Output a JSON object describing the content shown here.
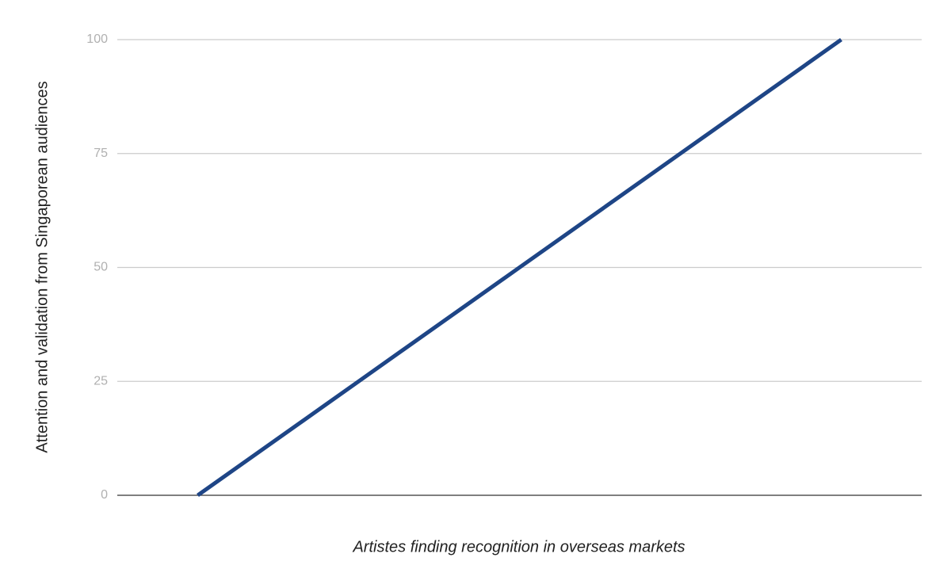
{
  "chart_data": {
    "type": "line",
    "x_label": "Artistes finding recognition in overseas markets",
    "y_label": "Attention and validation from Singaporean audiences",
    "categories": [
      null,
      null,
      null,
      null,
      null
    ],
    "series": [
      {
        "name": null,
        "color": "#1e4586",
        "values": [
          0,
          25,
          50,
          75,
          100
        ]
      }
    ],
    "ylim": [
      0,
      100
    ],
    "yticks": [
      0,
      25,
      50,
      75,
      100
    ],
    "grid": true
  }
}
